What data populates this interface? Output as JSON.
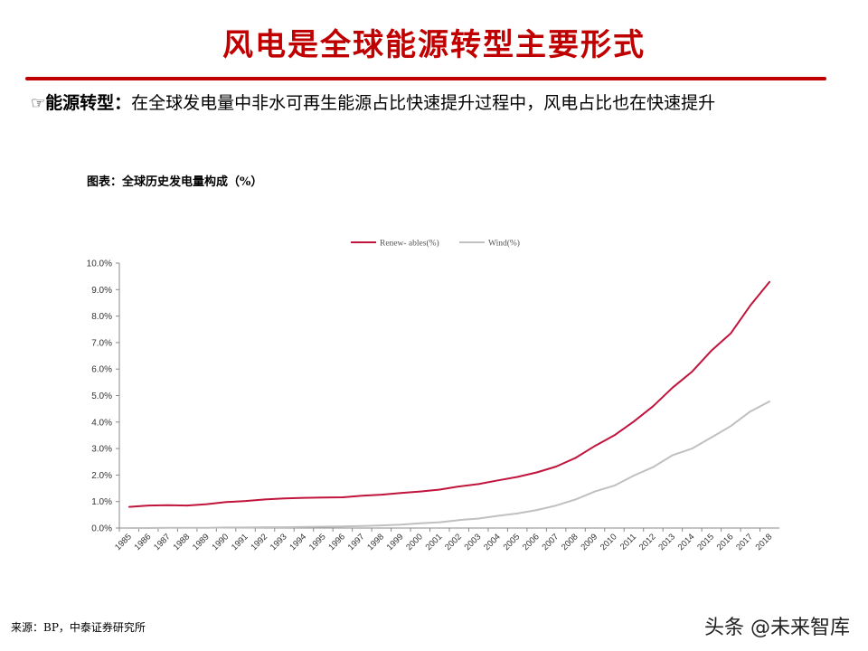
{
  "page": {
    "title": "风电是全球能源转型主要形式",
    "bullet_mark": "☞",
    "bullet_label": "能源转型：",
    "bullet_text": "在全球发电量中非水可再生能源占比快速提升过程中，风电占比也在快速提升",
    "chart_caption": "图表：全球历史发电量构成（%）",
    "source": "来源：BP，中泰证券研究所",
    "watermark": "头条 @未来智库",
    "accent_color": "#c00000"
  },
  "chart_data": {
    "type": "line",
    "x": [
      "1985",
      "1986",
      "1987",
      "1988",
      "1989",
      "1990",
      "1991",
      "1992",
      "1993",
      "1994",
      "1995",
      "1996",
      "1997",
      "1998",
      "1999",
      "2000",
      "2001",
      "2002",
      "2003",
      "2004",
      "2005",
      "2006",
      "2007",
      "2008",
      "2009",
      "2010",
      "2011",
      "2012",
      "2013",
      "2014",
      "2015",
      "2016",
      "2017",
      "2018"
    ],
    "series": [
      {
        "name": "Renew- ables(%)",
        "color": "#c0143c",
        "values": [
          0.8,
          0.85,
          0.86,
          0.85,
          0.9,
          0.98,
          1.02,
          1.08,
          1.12,
          1.14,
          1.15,
          1.16,
          1.22,
          1.26,
          1.32,
          1.38,
          1.45,
          1.57,
          1.66,
          1.8,
          1.93,
          2.1,
          2.32,
          2.65,
          3.1,
          3.5,
          4.02,
          4.6,
          5.3,
          5.9,
          6.7,
          7.35,
          8.4,
          9.3
        ]
      },
      {
        "name": "Wind(%)",
        "color": "#c0c0c0",
        "values": [
          0.0,
          0.0,
          0.01,
          0.01,
          0.01,
          0.02,
          0.02,
          0.03,
          0.03,
          0.04,
          0.05,
          0.06,
          0.08,
          0.1,
          0.13,
          0.18,
          0.22,
          0.3,
          0.36,
          0.46,
          0.55,
          0.68,
          0.85,
          1.08,
          1.38,
          1.6,
          1.98,
          2.3,
          2.75,
          3.0,
          3.42,
          3.85,
          4.4,
          4.78
        ]
      }
    ],
    "y_ticks": [
      "0.0%",
      "1.0%",
      "2.0%",
      "3.0%",
      "4.0%",
      "5.0%",
      "6.0%",
      "7.0%",
      "8.0%",
      "9.0%",
      "10.0%"
    ],
    "ylim": [
      0,
      10
    ],
    "grid": false,
    "legend_position": "top-center"
  }
}
